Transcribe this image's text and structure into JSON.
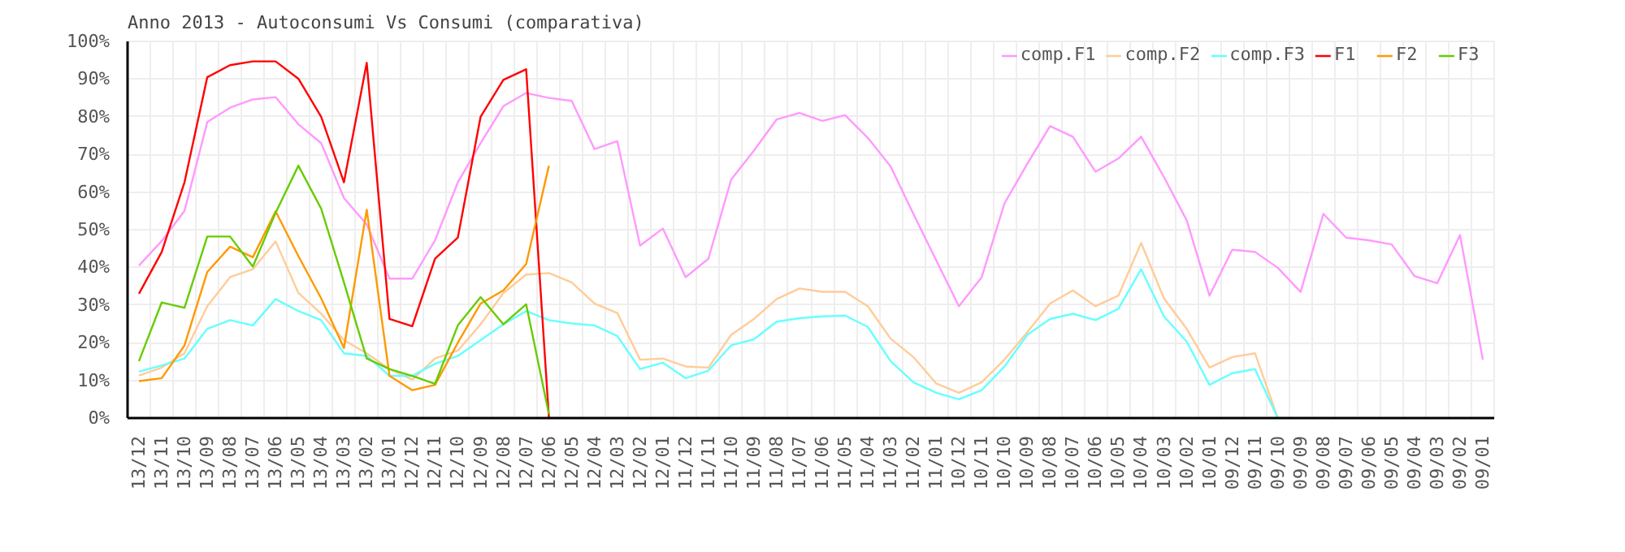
{
  "chart_data": {
    "type": "line",
    "title": "Anno 2013 - Autoconsumi Vs Consumi (comparativa)",
    "categories": [
      "13/12",
      "13/11",
      "13/10",
      "13/09",
      "13/08",
      "13/07",
      "13/06",
      "13/05",
      "13/04",
      "13/03",
      "13/02",
      "13/01",
      "12/12",
      "12/11",
      "12/10",
      "12/09",
      "12/08",
      "12/07",
      "12/06",
      "12/05",
      "12/04",
      "12/03",
      "12/02",
      "12/01",
      "11/12",
      "11/11",
      "11/10",
      "11/09",
      "11/08",
      "11/07",
      "11/06",
      "11/05",
      "11/04",
      "11/03",
      "11/02",
      "11/01",
      "10/12",
      "10/11",
      "10/10",
      "10/09",
      "10/08",
      "10/07",
      "10/06",
      "10/05",
      "10/04",
      "10/03",
      "10/02",
      "10/01",
      "09/12",
      "09/11",
      "09/10",
      "09/09",
      "09/08",
      "09/07",
      "09/06",
      "09/05",
      "09/04",
      "09/03",
      "09/02",
      "09/01"
    ],
    "series": [
      {
        "name": "comp.F1",
        "color": "#ff99ff",
        "values": [
          40.5,
          47,
          55,
          78.6,
          82.4,
          84.6,
          85.2,
          78,
          73,
          58.4,
          51.4,
          37,
          37,
          47.2,
          62.6,
          73,
          82.8,
          86.3,
          85,
          84.2,
          71.4,
          73.5,
          45.8,
          50.3,
          37.4,
          42.3,
          63.3,
          71,
          79.3,
          81,
          78.9,
          80.4,
          74.4,
          66.8,
          54.2,
          41.9,
          29.7,
          37.4,
          57,
          67.5,
          77.5,
          74.7,
          65.4,
          68.9,
          74.7,
          64,
          52.5,
          32.5,
          44.7,
          44.1,
          39.9,
          33.5,
          54.2,
          47.9,
          47.2,
          46.1,
          37.7,
          35.8,
          48.6,
          15.5
        ]
      },
      {
        "name": "comp.F2",
        "color": "#ffcc99",
        "values": [
          11.3,
          13.4,
          17.2,
          29.7,
          37.4,
          39.5,
          46.9,
          33.2,
          27.7,
          20.7,
          17.2,
          13,
          10.2,
          15.8,
          17.9,
          24.9,
          33.2,
          38.1,
          38.5,
          36,
          30.4,
          27.9,
          15.5,
          15.8,
          13.7,
          13.4,
          22.1,
          26.3,
          31.6,
          34.4,
          33.5,
          33.5,
          29.7,
          21.1,
          16.2,
          9.2,
          6.7,
          9.5,
          15.5,
          22.8,
          30.4,
          33.9,
          29.7,
          32.5,
          46.5,
          31.8,
          23.7,
          13.4,
          16.2,
          17.2,
          0,
          null,
          null,
          null,
          null,
          null,
          null,
          null,
          null,
          null
        ]
      },
      {
        "name": "comp.F3",
        "color": "#66ffff",
        "values": [
          12.3,
          14,
          15.8,
          23.7,
          26,
          24.6,
          31.6,
          28.4,
          26,
          17.2,
          16.5,
          11.2,
          11.2,
          14.4,
          16.5,
          20.7,
          24.9,
          28.4,
          26,
          25.1,
          24.6,
          21.8,
          13,
          14.7,
          10.6,
          12.6,
          19.3,
          20.9,
          25.6,
          26.5,
          27,
          27.2,
          24.2,
          15.1,
          9.5,
          6.7,
          5,
          7.4,
          13.7,
          22.1,
          26.3,
          27.7,
          26,
          29,
          39.5,
          27,
          20.3,
          8.8,
          11.9,
          13,
          0,
          null,
          null,
          null,
          null,
          null,
          null,
          null,
          null,
          null
        ]
      },
      {
        "name": "F1",
        "color": "#ff0000",
        "values": [
          33,
          44.1,
          62.6,
          90.5,
          93.7,
          94.7,
          94.7,
          90.1,
          80,
          62.6,
          94.3,
          26.3,
          24.4,
          42.3,
          47.9,
          80,
          89.8,
          92.6,
          0,
          null,
          null,
          null,
          null,
          null,
          null,
          null,
          null,
          null,
          null,
          null,
          null,
          null,
          null,
          null,
          null,
          null,
          null,
          null,
          null,
          null,
          null,
          null,
          null,
          null,
          null,
          null,
          null,
          null,
          null,
          null,
          null,
          null,
          null,
          null,
          null,
          null,
          null,
          null,
          null,
          null
        ]
      },
      {
        "name": "F2",
        "color": "#ff9900",
        "values": [
          9.8,
          10.6,
          19.3,
          38.8,
          45.5,
          42.7,
          54.9,
          43,
          31.8,
          18.6,
          55.3,
          11.2,
          7.4,
          8.8,
          20,
          30.4,
          33.9,
          40.9,
          67,
          null,
          null,
          null,
          null,
          null,
          null,
          null,
          null,
          null,
          null,
          null,
          null,
          null,
          null,
          null,
          null,
          null,
          null,
          null,
          null,
          null,
          null,
          null,
          null,
          null,
          null,
          null,
          null,
          null,
          null,
          null,
          null,
          null,
          null,
          null,
          null,
          null,
          null,
          null,
          null,
          null
        ]
      },
      {
        "name": "F3",
        "color": "#66cc00",
        "values": [
          15.1,
          30.7,
          29.3,
          48.2,
          48.2,
          40.2,
          54.5,
          67,
          55.6,
          36,
          15.8,
          13,
          11.2,
          9.1,
          24.6,
          32.1,
          24.9,
          30.2,
          1,
          null,
          null,
          null,
          null,
          null,
          null,
          null,
          null,
          null,
          null,
          null,
          null,
          null,
          null,
          null,
          null,
          null,
          null,
          null,
          null,
          null,
          null,
          null,
          null,
          null,
          null,
          null,
          null,
          null,
          null,
          null,
          null,
          null,
          null,
          null,
          null,
          null,
          null,
          null,
          null,
          null
        ]
      }
    ],
    "ylim": [
      0,
      100
    ],
    "yticks": [
      {
        "value": 0,
        "label": "0%"
      },
      {
        "value": 10,
        "label": "10%"
      },
      {
        "value": 20,
        "label": "20%"
      },
      {
        "value": 30,
        "label": "30%"
      },
      {
        "value": 40,
        "label": "40%"
      },
      {
        "value": 50,
        "label": "50%"
      },
      {
        "value": 60,
        "label": "60%"
      },
      {
        "value": 70,
        "label": "70%"
      },
      {
        "value": 80,
        "label": "80%"
      },
      {
        "value": 90,
        "label": "90%"
      },
      {
        "value": 100,
        "label": "100%"
      }
    ],
    "grid": true,
    "legend": "top right"
  }
}
